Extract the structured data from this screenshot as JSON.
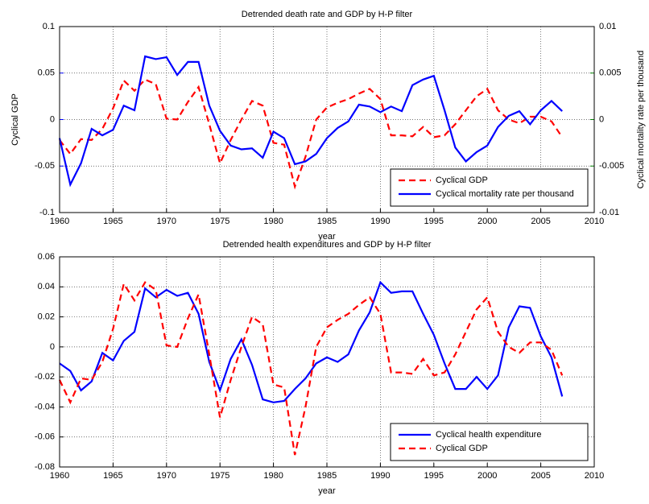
{
  "chart_data": [
    {
      "type": "line",
      "title": "Detrended death rate and GDP by H-P filter",
      "xlabel": "year",
      "ylabel": "Cyclical GDP",
      "y2label": "Cyclical mortality rate per thousand",
      "ylabel_color": "#0000ff",
      "y2label_color": "#008000",
      "x": [
        1960,
        1961,
        1962,
        1963,
        1964,
        1965,
        1966,
        1967,
        1968,
        1969,
        1970,
        1971,
        1972,
        1973,
        1974,
        1975,
        1976,
        1977,
        1978,
        1979,
        1980,
        1981,
        1982,
        1983,
        1984,
        1985,
        1986,
        1987,
        1988,
        1989,
        1990,
        1991,
        1992,
        1993,
        1994,
        1995,
        1996,
        1997,
        1998,
        1999,
        2000,
        2001,
        2002,
        2003,
        2004,
        2005,
        2006,
        2007
      ],
      "series": [
        {
          "name": "Cyclical GDP",
          "color": "#ff0000",
          "linestyle": "dashed",
          "values": [
            -0.022,
            -0.037,
            -0.021,
            -0.022,
            -0.01,
            0.012,
            0.042,
            0.031,
            0.043,
            0.038,
            0.001,
            0.0,
            0.019,
            0.035,
            -0.005,
            -0.047,
            -0.022,
            0.0,
            0.02,
            0.015,
            -0.025,
            -0.027,
            -0.072,
            -0.04,
            0.0,
            0.013,
            0.018,
            0.022,
            0.028,
            0.033,
            0.022,
            -0.017,
            -0.017,
            -0.018,
            -0.008,
            -0.019,
            -0.017,
            -0.005,
            0.01,
            0.025,
            0.033,
            0.01,
            0.0,
            -0.004,
            0.003,
            0.003,
            -0.002,
            -0.019
          ]
        },
        {
          "name": "Cyclical mortality rate per thousand",
          "color": "#0000ff",
          "linestyle": "solid",
          "axis": "y2",
          "values": [
            -0.002,
            -0.007,
            -0.0047,
            -0.001,
            -0.0017,
            -0.0011,
            0.0015,
            0.001,
            0.0068,
            0.0065,
            0.0067,
            0.0048,
            0.0062,
            0.0062,
            0.0015,
            -0.0012,
            -0.0028,
            -0.0032,
            -0.0031,
            -0.0041,
            -0.0013,
            -0.002,
            -0.0048,
            -0.0045,
            -0.0037,
            -0.002,
            -0.0009,
            -0.0002,
            0.0016,
            0.0014,
            0.0008,
            0.0014,
            0.0009,
            0.0037,
            0.0043,
            0.0047,
            0.001,
            -0.003,
            -0.0045,
            -0.0035,
            -0.0028,
            -0.0008,
            0.0004,
            0.0009,
            -0.0005,
            0.001,
            0.002,
            0.0009
          ]
        }
      ],
      "xlim": [
        1960,
        2010
      ],
      "xticks": [
        1960,
        1965,
        1970,
        1975,
        1980,
        1985,
        1990,
        1995,
        2000,
        2005,
        2010
      ],
      "ylim": [
        -0.1,
        0.1
      ],
      "yticks": [
        -0.1,
        -0.05,
        0,
        0.05,
        0.1
      ],
      "y2lim": [
        -0.01,
        0.01
      ],
      "y2ticks": [
        -0.01,
        -0.005,
        0,
        0.005,
        0.01
      ],
      "grid": true,
      "legend": "lower right"
    },
    {
      "type": "line",
      "title": "Detrended health expenditures and GDP by H-P filter",
      "xlabel": "year",
      "x": [
        1960,
        1961,
        1962,
        1963,
        1964,
        1965,
        1966,
        1967,
        1968,
        1969,
        1970,
        1971,
        1972,
        1973,
        1974,
        1975,
        1976,
        1977,
        1978,
        1979,
        1980,
        1981,
        1982,
        1983,
        1984,
        1985,
        1986,
        1987,
        1988,
        1989,
        1990,
        1991,
        1992,
        1993,
        1994,
        1995,
        1996,
        1997,
        1998,
        1999,
        2000,
        2001,
        2002,
        2003,
        2004,
        2005,
        2006,
        2007
      ],
      "series": [
        {
          "name": "Cyclical health expenditure",
          "color": "#0000ff",
          "linestyle": "solid",
          "values": [
            -0.011,
            -0.016,
            -0.029,
            -0.023,
            -0.004,
            -0.009,
            0.004,
            0.01,
            0.039,
            0.033,
            0.038,
            0.034,
            0.036,
            0.022,
            -0.01,
            -0.029,
            -0.008,
            0.005,
            -0.012,
            -0.035,
            -0.037,
            -0.036,
            -0.028,
            -0.021,
            -0.011,
            -0.007,
            -0.01,
            -0.005,
            0.011,
            0.023,
            0.043,
            0.036,
            0.037,
            0.037,
            0.022,
            0.008,
            -0.011,
            -0.028,
            -0.028,
            -0.02,
            -0.028,
            -0.019,
            0.013,
            0.027,
            0.026,
            0.007,
            -0.007,
            -0.033
          ]
        },
        {
          "name": "Cyclical GDP",
          "color": "#ff0000",
          "linestyle": "dashed",
          "values": [
            -0.022,
            -0.037,
            -0.021,
            -0.022,
            -0.01,
            0.012,
            0.042,
            0.031,
            0.043,
            0.038,
            0.001,
            0.0,
            0.019,
            0.035,
            -0.005,
            -0.047,
            -0.022,
            0.0,
            0.02,
            0.015,
            -0.025,
            -0.027,
            -0.072,
            -0.04,
            0.0,
            0.013,
            0.018,
            0.022,
            0.028,
            0.033,
            0.022,
            -0.017,
            -0.017,
            -0.018,
            -0.008,
            -0.019,
            -0.017,
            -0.005,
            0.01,
            0.025,
            0.033,
            0.01,
            0.0,
            -0.004,
            0.003,
            0.003,
            -0.002,
            -0.019
          ]
        }
      ],
      "xlim": [
        1960,
        2010
      ],
      "xticks": [
        1960,
        1965,
        1970,
        1975,
        1980,
        1985,
        1990,
        1995,
        2000,
        2005,
        2010
      ],
      "ylim": [
        -0.08,
        0.06
      ],
      "yticks": [
        -0.08,
        -0.06,
        -0.04,
        -0.02,
        0,
        0.02,
        0.04,
        0.06
      ],
      "grid": true,
      "legend": "lower right"
    }
  ]
}
